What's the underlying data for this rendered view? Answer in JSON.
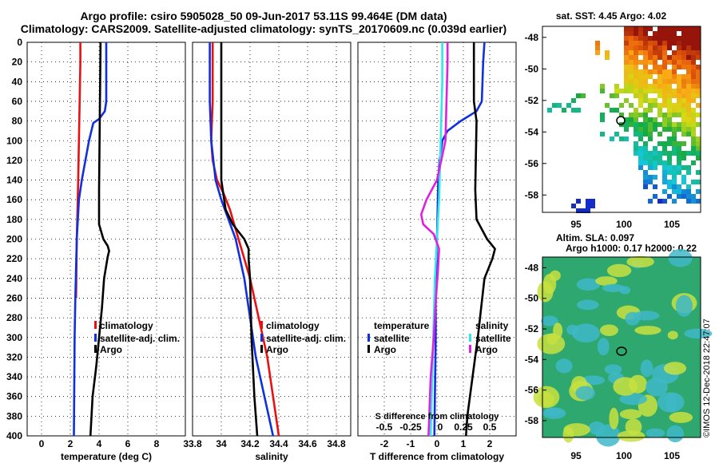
{
  "header": {
    "line1": "Argo profile: csiro 5905028_50 09-Jun-2017 53.11S 99.464E (DM data)",
    "line2": "Climatology: CARS2009. Satellite-adjusted climatology: synTS_20170609.nc (0.039d earlier)"
  },
  "colors": {
    "climatology": "#e81010",
    "satellite": "#1030e0",
    "argo": "#000000",
    "cyan": "#30e8e8",
    "magenta": "#e020e0"
  },
  "chart_data": [
    {
      "type": "line",
      "id": "temperature",
      "xlabel": "temperature (deg C)",
      "ylabel": "",
      "xlim": [
        -1,
        10
      ],
      "ylim": [
        400,
        0
      ],
      "xticks": [
        "0",
        "2",
        "4",
        "6",
        "8"
      ],
      "xtick_values": [
        0,
        2,
        4,
        6,
        8
      ],
      "yticks": [
        "0",
        "20",
        "40",
        "60",
        "80",
        "100",
        "120",
        "140",
        "160",
        "180",
        "200",
        "220",
        "240",
        "260",
        "280",
        "300",
        "320",
        "340",
        "360",
        "380",
        "400"
      ],
      "ytick_values": [
        0,
        20,
        40,
        60,
        80,
        100,
        120,
        140,
        160,
        180,
        200,
        220,
        240,
        260,
        280,
        300,
        320,
        340,
        360,
        380,
        400
      ],
      "legend": [
        "climatology",
        "satellite-adj. clim.",
        "Argo"
      ],
      "series": [
        {
          "name": "climatology",
          "color": "climatology",
          "depth": [
            0,
            20,
            60,
            100,
            140,
            200,
            260
          ],
          "values": [
            2.7,
            2.7,
            2.65,
            2.6,
            2.55,
            2.45,
            2.4
          ]
        },
        {
          "name": "satellite-adj. clim.",
          "color": "satellite",
          "depth": [
            0,
            20,
            60,
            70,
            78,
            82,
            100,
            140,
            160,
            200,
            260,
            300,
            400
          ],
          "values": [
            4.5,
            4.5,
            4.5,
            4.4,
            4.0,
            3.6,
            3.3,
            2.8,
            2.6,
            2.45,
            2.35,
            2.3,
            2.25
          ]
        },
        {
          "name": "Argo",
          "color": "argo",
          "depth": [
            0,
            5,
            150,
            185,
            200,
            207,
            212,
            218,
            240,
            270,
            300,
            330,
            360,
            400
          ],
          "values": [
            4.1,
            4.1,
            4.0,
            4.0,
            4.3,
            4.6,
            4.7,
            4.6,
            4.35,
            4.2,
            4.0,
            3.8,
            3.55,
            3.4
          ]
        }
      ]
    },
    {
      "type": "line",
      "id": "salinity",
      "xlabel": "salinity",
      "ylabel": "",
      "xlim": [
        33.8,
        34.9
      ],
      "ylim": [
        400,
        0
      ],
      "xticks": [
        "33.8",
        "34",
        "34.2",
        "34.4",
        "34.6",
        "34.8"
      ],
      "xtick_values": [
        33.8,
        34.0,
        34.2,
        34.4,
        34.6,
        34.8
      ],
      "legend": [
        "climatology",
        "satellite-adj. clim.",
        "Argo"
      ],
      "series": [
        {
          "name": "climatology",
          "color": "climatology",
          "depth": [
            0,
            20,
            60,
            100,
            120,
            140,
            155,
            170,
            200,
            240,
            280,
            320,
            360,
            400
          ],
          "values": [
            33.94,
            33.94,
            33.94,
            33.93,
            33.94,
            33.97,
            34.02,
            34.06,
            34.12,
            34.2,
            34.26,
            34.32,
            34.36,
            34.4
          ]
        },
        {
          "name": "satellite-adj. clim.",
          "color": "satellite",
          "depth": [
            0,
            20,
            60,
            100,
            140,
            160,
            180,
            200,
            240,
            280,
            320,
            360,
            400
          ],
          "values": [
            33.92,
            33.92,
            33.92,
            33.93,
            33.96,
            34.0,
            34.05,
            34.1,
            34.16,
            34.2,
            34.24,
            34.3,
            34.36
          ]
        },
        {
          "name": "Argo",
          "color": "argo",
          "depth": [
            0,
            10,
            100,
            140,
            170,
            185,
            200,
            210,
            220,
            240,
            300,
            360,
            400
          ],
          "values": [
            34.0,
            34.0,
            34.0,
            34.0,
            34.03,
            34.08,
            34.16,
            34.19,
            34.19,
            34.2,
            34.21,
            34.23,
            34.25
          ]
        }
      ]
    },
    {
      "type": "line",
      "id": "differences",
      "xlabel": "T difference from climatology",
      "xlabel2": "S difference from climatology",
      "xlim": [
        -3,
        3
      ],
      "ylim": [
        400,
        0
      ],
      "xticks": [
        "-2",
        "-1",
        "0",
        "1",
        "2"
      ],
      "xtick_values": [
        -2,
        -1,
        0,
        1,
        2
      ],
      "xticks2": [
        "-0.5",
        "-0.25",
        "0",
        "0.25",
        "0.5"
      ],
      "xtick2_values": [
        -0.5,
        -0.25,
        0,
        0.25,
        0.5
      ],
      "legend_left_title": "temperature",
      "legend_left": [
        "satellite",
        "Argo"
      ],
      "legend_right_title": "salinity",
      "legend_right": [
        "satellite",
        "Argo"
      ],
      "series": [
        {
          "name": "T satellite",
          "color": "satellite",
          "depth": [
            0,
            20,
            60,
            70,
            80,
            90,
            100,
            110,
            120,
            140,
            200,
            260,
            300,
            400
          ],
          "values": [
            1.8,
            1.75,
            1.7,
            1.5,
            0.9,
            0.4,
            0.2,
            0.15,
            0.1,
            0.05,
            0.0,
            -0.05,
            -0.05,
            -0.1
          ]
        },
        {
          "name": "T Argo",
          "color": "argo",
          "depth": [
            0,
            20,
            60,
            80,
            150,
            180,
            200,
            210,
            220,
            240,
            300,
            340,
            380,
            400
          ],
          "values": [
            1.4,
            1.4,
            1.4,
            1.5,
            1.45,
            1.5,
            1.9,
            2.2,
            2.1,
            1.8,
            1.55,
            1.35,
            1.15,
            1.1
          ]
        },
        {
          "name": "S satellite",
          "color": "cyan",
          "depth": [
            0,
            40,
            80,
            120,
            160,
            200,
            240,
            280,
            320,
            360,
            400
          ],
          "values": [
            0.05,
            0.05,
            0.04,
            0.03,
            0.02,
            0.0,
            -0.02,
            -0.03,
            -0.04,
            -0.05,
            -0.06
          ]
        },
        {
          "name": "S Argo",
          "color": "magenta",
          "depth": [
            0,
            20,
            60,
            100,
            140,
            160,
            175,
            185,
            195,
            210,
            230,
            260,
            300,
            340,
            400
          ],
          "values": [
            0.1,
            0.1,
            0.09,
            0.08,
            0.0,
            -0.1,
            -0.15,
            -0.13,
            -0.03,
            0.02,
            0.01,
            -0.01,
            -0.03,
            -0.06,
            -0.08
          ]
        }
      ]
    }
  ],
  "map1": {
    "title": "sat. SST: 4.45 Argo: 4.02",
    "lat_labels": [
      "-48",
      "-50",
      "-52",
      "-54",
      "-56",
      "-58"
    ],
    "lon_labels": [
      "95",
      "100",
      "105"
    ]
  },
  "map2": {
    "title1": "Altim. SLA: 0.097",
    "title2": "Argo h1000: 0.17 h2000: 0.22",
    "lat_labels": [
      "-48",
      "-50",
      "-52",
      "-54",
      "-56",
      "-58"
    ],
    "lon_labels": [
      "95",
      "100",
      "105"
    ]
  },
  "watermark": "©IMOS 12-Dec-2018 22:47:07"
}
